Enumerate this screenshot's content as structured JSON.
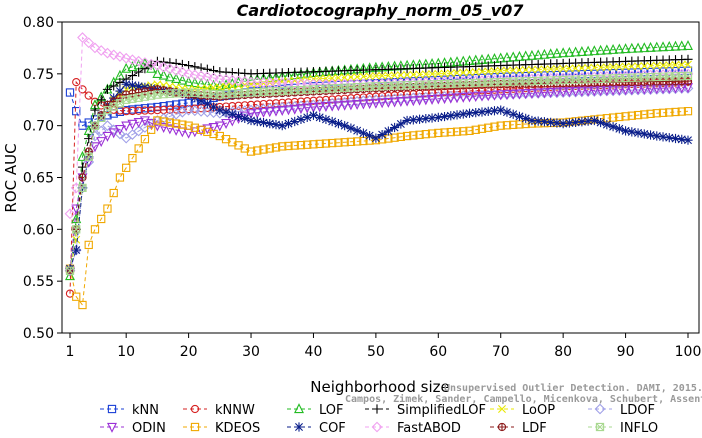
{
  "chart_data": {
    "type": "line",
    "title": "Cardiotocography_norm_05_v07",
    "xlabel": "Neighborhood size",
    "ylabel": "ROC AUC",
    "xlim": [
      1,
      100
    ],
    "ylim": [
      0.5,
      0.8
    ],
    "xticks": [
      1,
      10,
      20,
      30,
      40,
      50,
      60,
      70,
      80,
      90,
      100
    ],
    "xtick_labels": [
      "1",
      "10",
      "20",
      "30",
      "40",
      "50",
      "60",
      "70",
      "80",
      "90",
      "100"
    ],
    "yticks": [
      0.5,
      0.55,
      0.6,
      0.65,
      0.7,
      0.75,
      0.8
    ],
    "ytick_labels": [
      "0.50",
      "0.55",
      "0.60",
      "0.65",
      "0.70",
      "0.75",
      "0.80"
    ],
    "grid": false,
    "legend_position": "bottom",
    "series": [
      {
        "name": "kNN",
        "color": "#1a3fd6",
        "marker": "square",
        "points": [
          [
            1,
            0.732
          ],
          [
            2,
            0.714
          ],
          [
            3,
            0.7
          ],
          [
            5,
            0.706
          ],
          [
            7,
            0.71
          ],
          [
            10,
            0.715
          ],
          [
            15,
            0.718
          ],
          [
            20,
            0.722
          ],
          [
            25,
            0.728
          ],
          [
            30,
            0.733
          ],
          [
            40,
            0.738
          ],
          [
            50,
            0.741
          ],
          [
            60,
            0.744
          ],
          [
            70,
            0.747
          ],
          [
            80,
            0.749
          ],
          [
            90,
            0.751
          ],
          [
            100,
            0.753
          ]
        ]
      },
      {
        "name": "kNNW",
        "color": "#d62020",
        "marker": "circle",
        "points": [
          [
            1,
            0.538
          ],
          [
            2,
            0.742
          ],
          [
            3,
            0.735
          ],
          [
            5,
            0.723
          ],
          [
            7,
            0.716
          ],
          [
            10,
            0.714
          ],
          [
            15,
            0.715
          ],
          [
            20,
            0.716
          ],
          [
            25,
            0.718
          ],
          [
            30,
            0.72
          ],
          [
            40,
            0.724
          ],
          [
            50,
            0.728
          ],
          [
            60,
            0.732
          ],
          [
            70,
            0.735
          ],
          [
            80,
            0.738
          ],
          [
            90,
            0.74
          ],
          [
            100,
            0.742
          ]
        ]
      },
      {
        "name": "LOF",
        "color": "#22bb22",
        "marker": "triangle-up",
        "points": [
          [
            1,
            0.555
          ],
          [
            2,
            0.61
          ],
          [
            3,
            0.67
          ],
          [
            5,
            0.72
          ],
          [
            7,
            0.735
          ],
          [
            10,
            0.755
          ],
          [
            13,
            0.76
          ],
          [
            15,
            0.75
          ],
          [
            20,
            0.742
          ],
          [
            25,
            0.738
          ],
          [
            30,
            0.744
          ],
          [
            40,
            0.751
          ],
          [
            50,
            0.756
          ],
          [
            60,
            0.76
          ],
          [
            70,
            0.765
          ],
          [
            80,
            0.77
          ],
          [
            90,
            0.774
          ],
          [
            100,
            0.777
          ]
        ]
      },
      {
        "name": "SimplifiedLOF",
        "color": "#000000",
        "marker": "plus",
        "points": [
          [
            1,
            0.56
          ],
          [
            2,
            0.6
          ],
          [
            3,
            0.66
          ],
          [
            5,
            0.715
          ],
          [
            7,
            0.735
          ],
          [
            10,
            0.745
          ],
          [
            13,
            0.755
          ],
          [
            15,
            0.762
          ],
          [
            18,
            0.76
          ],
          [
            20,
            0.758
          ],
          [
            25,
            0.752
          ],
          [
            30,
            0.75
          ],
          [
            40,
            0.752
          ],
          [
            50,
            0.754
          ],
          [
            60,
            0.756
          ],
          [
            70,
            0.758
          ],
          [
            80,
            0.76
          ],
          [
            90,
            0.762
          ],
          [
            100,
            0.764
          ]
        ]
      },
      {
        "name": "LoOP",
        "color": "#e8e800",
        "marker": "x",
        "points": [
          [
            1,
            0.56
          ],
          [
            2,
            0.59
          ],
          [
            3,
            0.64
          ],
          [
            5,
            0.7
          ],
          [
            7,
            0.72
          ],
          [
            10,
            0.735
          ],
          [
            15,
            0.74
          ],
          [
            20,
            0.735
          ],
          [
            25,
            0.737
          ],
          [
            30,
            0.74
          ],
          [
            40,
            0.745
          ],
          [
            50,
            0.748
          ],
          [
            60,
            0.75
          ],
          [
            70,
            0.753
          ],
          [
            80,
            0.755
          ],
          [
            90,
            0.757
          ],
          [
            100,
            0.759
          ]
        ]
      },
      {
        "name": "LDOF",
        "color": "#a0a0e8",
        "marker": "diamond",
        "points": [
          [
            1,
            0.56
          ],
          [
            2,
            0.58
          ],
          [
            3,
            0.64
          ],
          [
            5,
            0.69
          ],
          [
            7,
            0.7
          ],
          [
            10,
            0.688
          ],
          [
            15,
            0.705
          ],
          [
            20,
            0.715
          ],
          [
            25,
            0.712
          ],
          [
            30,
            0.715
          ],
          [
            40,
            0.72
          ],
          [
            50,
            0.725
          ],
          [
            60,
            0.728
          ],
          [
            70,
            0.73
          ],
          [
            80,
            0.732
          ],
          [
            90,
            0.734
          ],
          [
            100,
            0.736
          ]
        ]
      },
      {
        "name": "ODIN",
        "color": "#9b30d6",
        "marker": "triangle-down",
        "points": [
          [
            1,
            0.56
          ],
          [
            2,
            0.62
          ],
          [
            3,
            0.65
          ],
          [
            5,
            0.68
          ],
          [
            7,
            0.69
          ],
          [
            10,
            0.7
          ],
          [
            13,
            0.705
          ],
          [
            15,
            0.7
          ],
          [
            20,
            0.693
          ],
          [
            25,
            0.7
          ],
          [
            30,
            0.712
          ],
          [
            40,
            0.718
          ],
          [
            50,
            0.722
          ],
          [
            60,
            0.726
          ],
          [
            70,
            0.73
          ],
          [
            80,
            0.733
          ],
          [
            90,
            0.735
          ],
          [
            100,
            0.737
          ]
        ]
      },
      {
        "name": "KDEOS",
        "color": "#f0a800",
        "marker": "square",
        "points": [
          [
            1,
            0.562
          ],
          [
            2,
            0.535
          ],
          [
            3,
            0.527
          ],
          [
            4,
            0.585
          ],
          [
            5,
            0.6
          ],
          [
            7,
            0.62
          ],
          [
            9,
            0.65
          ],
          [
            12,
            0.678
          ],
          [
            15,
            0.705
          ],
          [
            20,
            0.7
          ],
          [
            25,
            0.69
          ],
          [
            30,
            0.675
          ],
          [
            35,
            0.68
          ],
          [
            40,
            0.682
          ],
          [
            45,
            0.684
          ],
          [
            50,
            0.686
          ],
          [
            55,
            0.69
          ],
          [
            60,
            0.693
          ],
          [
            65,
            0.695
          ],
          [
            70,
            0.7
          ],
          [
            75,
            0.702
          ],
          [
            80,
            0.703
          ],
          [
            85,
            0.706
          ],
          [
            90,
            0.709
          ],
          [
            95,
            0.712
          ],
          [
            100,
            0.714
          ]
        ]
      },
      {
        "name": "COF",
        "color": "#0a1e8a",
        "marker": "star",
        "points": [
          [
            1,
            0.562
          ],
          [
            2,
            0.58
          ],
          [
            3,
            0.64
          ],
          [
            5,
            0.7
          ],
          [
            7,
            0.72
          ],
          [
            10,
            0.74
          ],
          [
            15,
            0.735
          ],
          [
            20,
            0.73
          ],
          [
            25,
            0.715
          ],
          [
            30,
            0.705
          ],
          [
            35,
            0.7
          ],
          [
            40,
            0.71
          ],
          [
            45,
            0.7
          ],
          [
            50,
            0.688
          ],
          [
            55,
            0.705
          ],
          [
            60,
            0.708
          ],
          [
            65,
            0.712
          ],
          [
            70,
            0.715
          ],
          [
            75,
            0.705
          ],
          [
            80,
            0.702
          ],
          [
            85,
            0.705
          ],
          [
            90,
            0.695
          ],
          [
            95,
            0.69
          ],
          [
            100,
            0.686
          ]
        ]
      },
      {
        "name": "FastABOD",
        "color": "#f0a0f0",
        "marker": "diamond",
        "points": [
          [
            1,
            0.615
          ],
          [
            2,
            0.64
          ],
          [
            3,
            0.785
          ],
          [
            4,
            0.78
          ],
          [
            5,
            0.775
          ],
          [
            7,
            0.77
          ],
          [
            10,
            0.765
          ],
          [
            15,
            0.758
          ],
          [
            20,
            0.75
          ],
          [
            25,
            0.745
          ],
          [
            30,
            0.742
          ],
          [
            40,
            0.74
          ],
          [
            50,
            0.74
          ],
          [
            60,
            0.742
          ],
          [
            70,
            0.744
          ],
          [
            80,
            0.746
          ],
          [
            90,
            0.748
          ],
          [
            100,
            0.75
          ]
        ]
      },
      {
        "name": "LDF",
        "color": "#8b1a1a",
        "marker": "circle-plus",
        "points": [
          [
            1,
            0.56
          ],
          [
            2,
            0.6
          ],
          [
            3,
            0.65
          ],
          [
            5,
            0.7
          ],
          [
            7,
            0.72
          ],
          [
            10,
            0.73
          ],
          [
            15,
            0.735
          ],
          [
            20,
            0.73
          ],
          [
            25,
            0.728
          ],
          [
            30,
            0.73
          ],
          [
            40,
            0.733
          ],
          [
            50,
            0.736
          ],
          [
            60,
            0.738
          ],
          [
            70,
            0.74
          ],
          [
            80,
            0.741
          ],
          [
            90,
            0.742
          ],
          [
            100,
            0.743
          ]
        ]
      },
      {
        "name": "INFLO",
        "color": "#a8d890",
        "marker": "square-x",
        "points": [
          [
            1,
            0.56
          ],
          [
            2,
            0.6
          ],
          [
            3,
            0.64
          ],
          [
            5,
            0.7
          ],
          [
            7,
            0.715
          ],
          [
            10,
            0.725
          ],
          [
            15,
            0.73
          ],
          [
            20,
            0.732
          ],
          [
            25,
            0.73
          ],
          [
            30,
            0.732
          ],
          [
            40,
            0.735
          ],
          [
            50,
            0.738
          ],
          [
            60,
            0.74
          ],
          [
            70,
            0.742
          ],
          [
            80,
            0.744
          ],
          [
            90,
            0.746
          ],
          [
            100,
            0.748
          ]
        ]
      }
    ],
    "watermark_lines": [
      "Unsupervised Outlier Detection. DAMI, 2015.",
      "Campos, Zimek, Sander, Campello, Micenkova, Schubert, Assent, Houle"
    ]
  }
}
